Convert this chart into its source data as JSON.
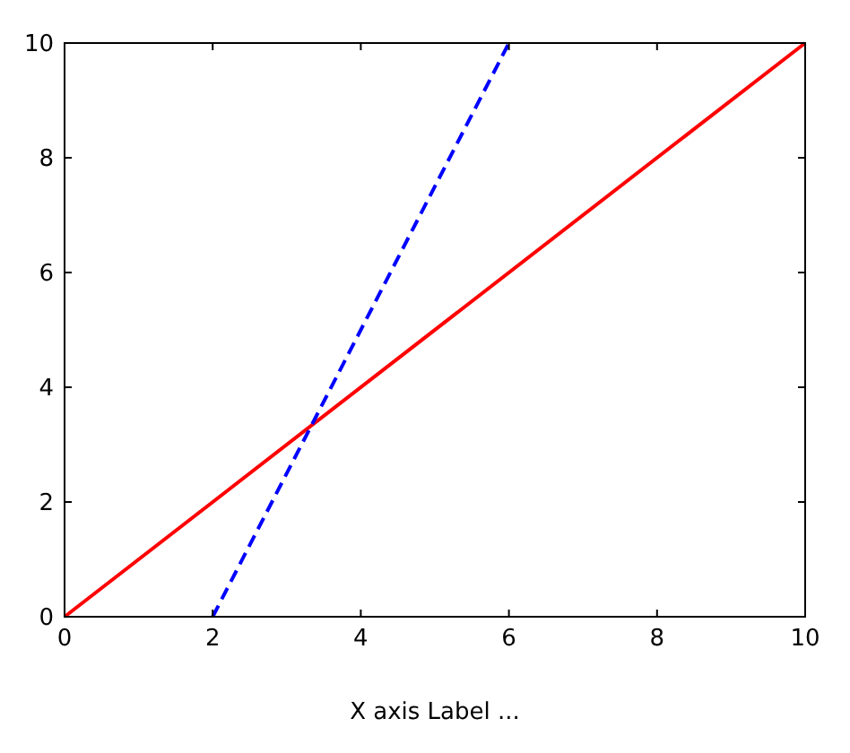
{
  "chart_data": {
    "type": "line",
    "xlabel": "X axis Label ...",
    "xlim": [
      0,
      10
    ],
    "ylim": [
      0,
      10
    ],
    "xticks": [
      0,
      2,
      4,
      6,
      8,
      10
    ],
    "yticks": [
      0,
      2,
      4,
      6,
      8,
      10
    ],
    "grid": false,
    "series": [
      {
        "color": "#ff0000",
        "x": [
          0,
          10
        ],
        "values": [
          0,
          10
        ],
        "line_style": "solid"
      },
      {
        "color": "#0000ff",
        "x": [
          2,
          6
        ],
        "values": [
          0,
          10
        ],
        "line_style": "dashed"
      }
    ]
  }
}
